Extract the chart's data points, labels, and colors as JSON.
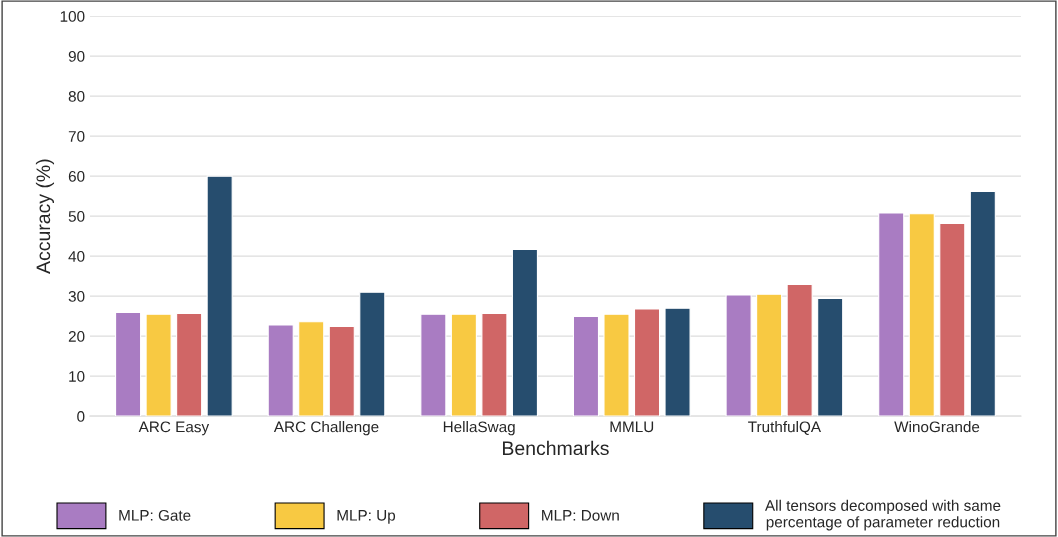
{
  "chart_data": {
    "type": "bar",
    "xlabel": "Benchmarks",
    "ylabel": "Accuracy (%)",
    "categories": [
      "ARC Easy",
      "ARC Challenge",
      "HellaSwag",
      "MMLU",
      "TruthfulQA",
      "WinoGrande"
    ],
    "series": [
      {
        "name": "MLP: Gate",
        "color": "#a97cc2",
        "values": [
          25.9,
          22.8,
          25.5,
          24.9,
          30.3,
          50.8
        ]
      },
      {
        "name": "MLP: Up",
        "color": "#f8c942",
        "values": [
          25.5,
          23.6,
          25.5,
          25.5,
          30.5,
          50.6
        ]
      },
      {
        "name": "MLP: Down",
        "color": "#d06666",
        "values": [
          25.7,
          22.4,
          25.7,
          26.8,
          32.9,
          48.2
        ]
      },
      {
        "name": "All tensors decomposed with same\npercentage of parameter reduction",
        "color": "#264d6e",
        "values": [
          60.0,
          31.0,
          41.7,
          27.0,
          29.4,
          56.2
        ]
      }
    ],
    "ylim": [
      0,
      100
    ],
    "yticks": [
      0,
      10,
      20,
      30,
      40,
      50,
      60,
      70,
      80,
      90,
      100
    ],
    "grid": "y",
    "legend": "bottom"
  }
}
